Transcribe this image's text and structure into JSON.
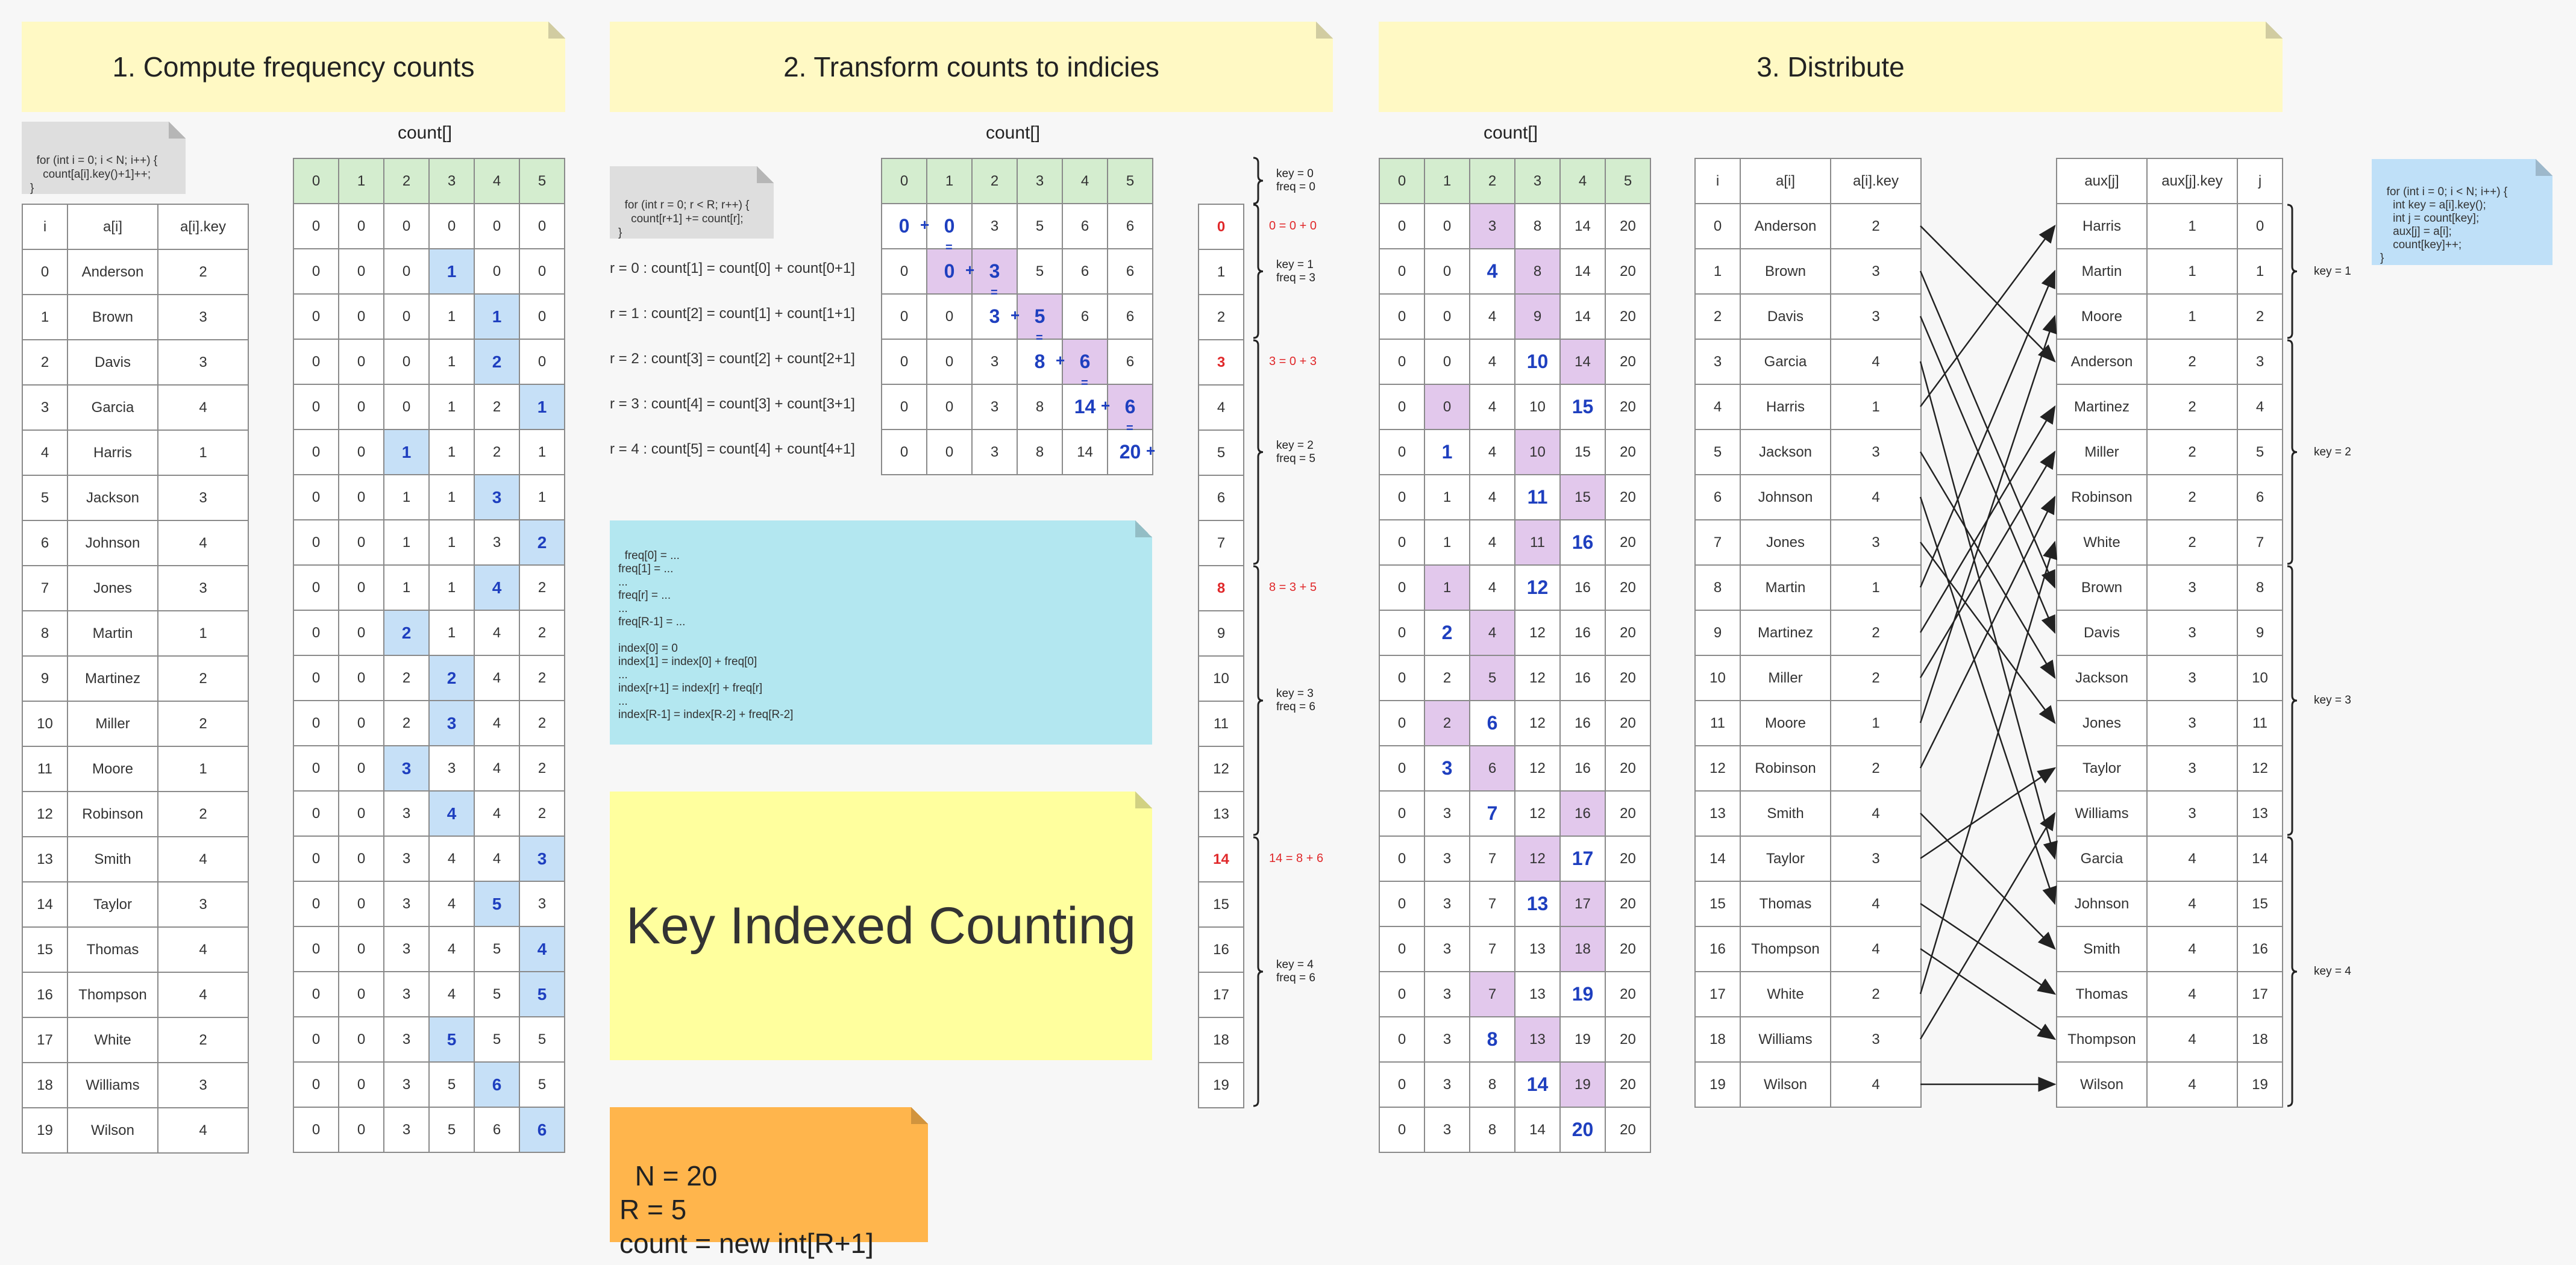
{
  "headers": {
    "s1": "1. Compute frequency counts",
    "s2": "2. Transform counts to indicies",
    "s3": "3. Distribute"
  },
  "labels": {
    "count": "count[]"
  },
  "code": {
    "freq": "for (int i = 0; i < N; i++) {\n    count[a[i].key()+1]++;\n}",
    "transform": "for (int r = 0; r < R; r++) {\n    count[r+1] += count[r];\n}",
    "distribute": "for (int i = 0; i < N; i++) {\n    int key = a[i].key();\n    int j = count[key];\n    aux[j] = a[i];\n    count[key]++;\n}",
    "index_note": "freq[0] = ...\nfreq[1] = ...\n...\nfreq[r] = ...\n...\nfreq[R-1] = ...\n\nindex[0] = 0\nindex[1] = index[0] + freq[0]\n...\nindex[r+1] = index[r] + freq[r]\n...\nindex[R-1] = index[R-2] + freq[R-2]"
  },
  "title": "Key Indexed Counting",
  "params": "N = 20\nR = 5\ncount = new int[R+1]",
  "table_headers": {
    "input": [
      "i",
      "a[i]",
      "a[i].key"
    ],
    "count": [
      "0",
      "1",
      "2",
      "3",
      "4",
      "5"
    ],
    "aux": [
      "aux[j]",
      "aux[j].key",
      "j"
    ]
  },
  "students": [
    [
      "0",
      "Anderson",
      "2"
    ],
    [
      "1",
      "Brown",
      "3"
    ],
    [
      "2",
      "Davis",
      "3"
    ],
    [
      "3",
      "Garcia",
      "4"
    ],
    [
      "4",
      "Harris",
      "1"
    ],
    [
      "5",
      "Jackson",
      "3"
    ],
    [
      "6",
      "Johnson",
      "4"
    ],
    [
      "7",
      "Jones",
      "3"
    ],
    [
      "8",
      "Martin",
      "1"
    ],
    [
      "9",
      "Martinez",
      "2"
    ],
    [
      "10",
      "Miller",
      "2"
    ],
    [
      "11",
      "Moore",
      "1"
    ],
    [
      "12",
      "Robinson",
      "2"
    ],
    [
      "13",
      "Smith",
      "4"
    ],
    [
      "14",
      "Taylor",
      "3"
    ],
    [
      "15",
      "Thomas",
      "4"
    ],
    [
      "16",
      "Thompson",
      "4"
    ],
    [
      "17",
      "White",
      "2"
    ],
    [
      "18",
      "Williams",
      "3"
    ],
    [
      "19",
      "Wilson",
      "4"
    ]
  ],
  "count_rows": [
    [
      "0",
      "0",
      "0",
      "0",
      "0",
      "0"
    ],
    [
      "0",
      "0",
      "0",
      "1",
      "0",
      "0"
    ],
    [
      "0",
      "0",
      "0",
      "1",
      "1",
      "0"
    ],
    [
      "0",
      "0",
      "0",
      "1",
      "2",
      "0"
    ],
    [
      "0",
      "0",
      "0",
      "1",
      "2",
      "1"
    ],
    [
      "0",
      "0",
      "1",
      "1",
      "2",
      "1"
    ],
    [
      "0",
      "0",
      "1",
      "1",
      "3",
      "1"
    ],
    [
      "0",
      "0",
      "1",
      "1",
      "3",
      "2"
    ],
    [
      "0",
      "0",
      "1",
      "1",
      "4",
      "2"
    ],
    [
      "0",
      "0",
      "2",
      "1",
      "4",
      "2"
    ],
    [
      "0",
      "0",
      "2",
      "2",
      "4",
      "2"
    ],
    [
      "0",
      "0",
      "2",
      "3",
      "4",
      "2"
    ],
    [
      "0",
      "0",
      "3",
      "3",
      "4",
      "2"
    ],
    [
      "0",
      "0",
      "3",
      "4",
      "4",
      "2"
    ],
    [
      "0",
      "0",
      "3",
      "4",
      "4",
      "3"
    ],
    [
      "0",
      "0",
      "3",
      "4",
      "5",
      "3"
    ],
    [
      "0",
      "0",
      "3",
      "4",
      "5",
      "4"
    ],
    [
      "0",
      "0",
      "3",
      "4",
      "5",
      "5"
    ],
    [
      "0",
      "0",
      "3",
      "5",
      "5",
      "5"
    ],
    [
      "0",
      "0",
      "3",
      "5",
      "6",
      "5"
    ],
    [
      "0",
      "0",
      "3",
      "5",
      "6",
      "6"
    ]
  ],
  "count_hl": [
    null,
    3,
    4,
    4,
    5,
    2,
    4,
    5,
    4,
    2,
    3,
    3,
    2,
    3,
    5,
    4,
    5,
    5,
    3,
    4,
    5
  ],
  "transform_rows": [
    [
      "0",
      "0",
      "3",
      "5",
      "6",
      "6"
    ],
    [
      "0",
      "0",
      "3",
      "5",
      "6",
      "6"
    ],
    [
      "0",
      "0",
      "3",
      "5",
      "6",
      "6"
    ],
    [
      "0",
      "0",
      "3",
      "8",
      "6",
      "6"
    ],
    [
      "0",
      "0",
      "3",
      "8",
      "14",
      "6"
    ],
    [
      "0",
      "0",
      "3",
      "8",
      "14",
      "20"
    ]
  ],
  "transform_eqs": [
    "r = 0 : count[1] = count[0] + count[0+1]",
    "r = 1 : count[2] = count[1] + count[1+1]",
    "r = 2 : count[3] = count[2] + count[2+1]",
    "r = 3 : count[4] = count[3] + count[3+1]",
    "r = 4 : count[5] = count[4] + count[4+1]"
  ],
  "index_col": [
    "0",
    "1",
    "2",
    "3",
    "4",
    "5",
    "6",
    "7",
    "8",
    "9",
    "10",
    "11",
    "12",
    "13",
    "14",
    "15",
    "16",
    "17",
    "18",
    "19"
  ],
  "index_red": [
    "0",
    "3",
    "8",
    "14"
  ],
  "index_notes": [
    "0 = 0 + 0",
    "3 = 0 + 3",
    "8 = 3 + 5",
    "14 = 8 + 6"
  ],
  "groups": [
    {
      "key": "key = 0",
      "freq": "freq = 0"
    },
    {
      "key": "key = 1",
      "freq": "freq = 3"
    },
    {
      "key": "key = 2",
      "freq": "freq = 5"
    },
    {
      "key": "key = 3",
      "freq": "freq = 6"
    },
    {
      "key": "key = 4",
      "freq": "freq = 6"
    }
  ],
  "dist_rows": [
    [
      "0",
      "0",
      "3",
      "8",
      "14",
      "20"
    ],
    [
      "0",
      "0",
      "4",
      "8",
      "14",
      "20"
    ],
    [
      "0",
      "0",
      "4",
      "9",
      "14",
      "20"
    ],
    [
      "0",
      "0",
      "4",
      "10",
      "14",
      "20"
    ],
    [
      "0",
      "0",
      "4",
      "10",
      "15",
      "20"
    ],
    [
      "0",
      "1",
      "4",
      "10",
      "15",
      "20"
    ],
    [
      "0",
      "1",
      "4",
      "11",
      "15",
      "20"
    ],
    [
      "0",
      "1",
      "4",
      "11",
      "16",
      "20"
    ],
    [
      "0",
      "1",
      "4",
      "12",
      "16",
      "20"
    ],
    [
      "0",
      "2",
      "4",
      "12",
      "16",
      "20"
    ],
    [
      "0",
      "2",
      "5",
      "12",
      "16",
      "20"
    ],
    [
      "0",
      "2",
      "6",
      "12",
      "16",
      "20"
    ],
    [
      "0",
      "3",
      "6",
      "12",
      "16",
      "20"
    ],
    [
      "0",
      "3",
      "7",
      "12",
      "16",
      "20"
    ],
    [
      "0",
      "3",
      "7",
      "12",
      "17",
      "20"
    ],
    [
      "0",
      "3",
      "7",
      "13",
      "17",
      "20"
    ],
    [
      "0",
      "3",
      "7",
      "13",
      "18",
      "20"
    ],
    [
      "0",
      "3",
      "7",
      "13",
      "19",
      "20"
    ],
    [
      "0",
      "3",
      "8",
      "13",
      "19",
      "20"
    ],
    [
      "0",
      "3",
      "8",
      "14",
      "19",
      "20"
    ],
    [
      "0",
      "3",
      "8",
      "14",
      "20",
      "20"
    ]
  ],
  "aux": [
    [
      "Harris",
      "1",
      "0"
    ],
    [
      "Martin",
      "1",
      "1"
    ],
    [
      "Moore",
      "1",
      "2"
    ],
    [
      "Anderson",
      "2",
      "3"
    ],
    [
      "Martinez",
      "2",
      "4"
    ],
    [
      "Miller",
      "2",
      "5"
    ],
    [
      "Robinson",
      "2",
      "6"
    ],
    [
      "White",
      "2",
      "7"
    ],
    [
      "Brown",
      "3",
      "8"
    ],
    [
      "Davis",
      "3",
      "9"
    ],
    [
      "Jackson",
      "3",
      "10"
    ],
    [
      "Jones",
      "3",
      "11"
    ],
    [
      "Taylor",
      "3",
      "12"
    ],
    [
      "Williams",
      "3",
      "13"
    ],
    [
      "Garcia",
      "4",
      "14"
    ],
    [
      "Johnson",
      "4",
      "15"
    ],
    [
      "Smith",
      "4",
      "16"
    ],
    [
      "Thomas",
      "4",
      "17"
    ],
    [
      "Thompson",
      "4",
      "18"
    ],
    [
      "Wilson",
      "4",
      "19"
    ]
  ],
  "aux_keys": [
    "key = 1",
    "key = 2",
    "key = 3",
    "key = 4"
  ],
  "colors": {
    "header": "#fff9c4",
    "green": "#d4edcf",
    "blue_hl": "#c6e0f7",
    "purple_hl": "#e2c8ec",
    "cyan_note": "#b3e7f0",
    "orange_note": "#ffb54c",
    "yellow_note": "#ffff9e",
    "red": "#e0282a",
    "blue_text": "#1e3fbf"
  }
}
